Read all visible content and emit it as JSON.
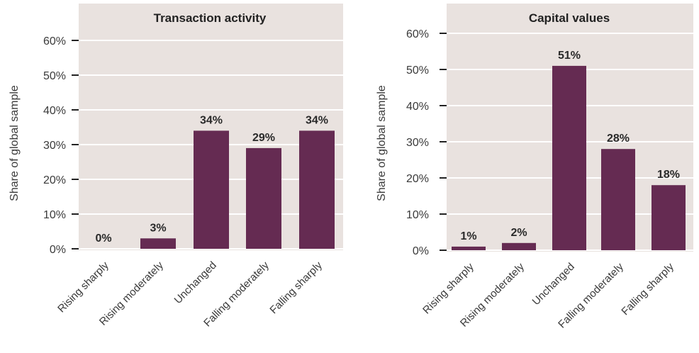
{
  "chart_data": [
    {
      "type": "bar",
      "title": "Transaction activity",
      "ylabel": "Share of global sample",
      "xlabel": "",
      "categories": [
        "Rising sharply",
        "Rising moderately",
        "Unchanged",
        "Falling moderately",
        "Falling sharply"
      ],
      "values": [
        0,
        3,
        34,
        29,
        34
      ],
      "value_labels": [
        "0%",
        "3%",
        "34%",
        "29%",
        "34%"
      ],
      "ylim": [
        0,
        60
      ],
      "yticks": [
        "0%",
        "10%",
        "20%",
        "30%",
        "40%",
        "50%",
        "60%"
      ],
      "grid": true,
      "colors": {
        "bar": "#652b52",
        "plot_bg": "#e9e2df",
        "grid": "#ffffff"
      }
    },
    {
      "type": "bar",
      "title": "Capital values",
      "ylabel": "Share of global sample",
      "xlabel": "",
      "categories": [
        "Rising sharply",
        "Rising moderately",
        "Unchanged",
        "Falling moderately",
        "Falling sharply"
      ],
      "values": [
        1,
        2,
        51,
        28,
        18
      ],
      "value_labels": [
        "1%",
        "2%",
        "51%",
        "28%",
        "18%"
      ],
      "ylim": [
        0,
        60
      ],
      "yticks": [
        "0%",
        "10%",
        "20%",
        "30%",
        "40%",
        "50%",
        "60%"
      ],
      "grid": true,
      "colors": {
        "bar": "#652b52",
        "plot_bg": "#e9e2df",
        "grid": "#ffffff"
      }
    }
  ]
}
